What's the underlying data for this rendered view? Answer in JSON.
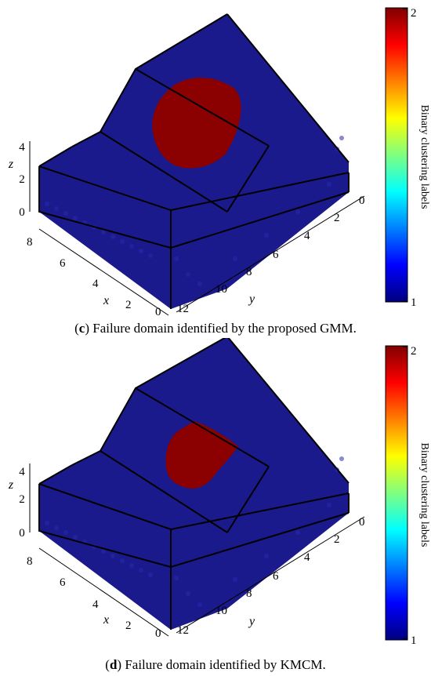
{
  "chart_data": [
    {
      "type": "scatter",
      "panel": "c",
      "caption_label": "c",
      "caption_text": " Failure domain identified by the proposed GMM.",
      "xlabel": "x",
      "ylabel": "y",
      "zlabel": "z",
      "x_ticks": [
        "0",
        "2",
        "4",
        "6",
        "8"
      ],
      "y_ticks": [
        "0",
        "2",
        "4",
        "6",
        "8",
        "10",
        "12"
      ],
      "z_ticks": [
        "0",
        "2",
        "4"
      ],
      "colorbar": {
        "label": "Binary clustering labels",
        "min": 1,
        "max": 2,
        "min_label": "1",
        "max_label": "2",
        "colormap": "jet"
      },
      "series": [
        {
          "label_value": 1,
          "color": "#1a1a8c"
        },
        {
          "label_value": 2,
          "color": "#8b0000"
        }
      ]
    },
    {
      "type": "scatter",
      "panel": "d",
      "caption_label": "d",
      "caption_text": " Failure domain identified by KMCM.",
      "xlabel": "x",
      "ylabel": "y",
      "zlabel": "z",
      "x_ticks": [
        "0",
        "2",
        "4",
        "6",
        "8"
      ],
      "y_ticks": [
        "0",
        "2",
        "4",
        "6",
        "8",
        "10",
        "12"
      ],
      "z_ticks": [
        "0",
        "2",
        "4"
      ],
      "colorbar": {
        "label": "Binary clustering labels",
        "min": 1,
        "max": 2,
        "min_label": "1",
        "max_label": "2",
        "colormap": "jet"
      },
      "series": [
        {
          "label_value": 1,
          "color": "#1a1a8c"
        },
        {
          "label_value": 2,
          "color": "#8b0000"
        }
      ]
    }
  ]
}
